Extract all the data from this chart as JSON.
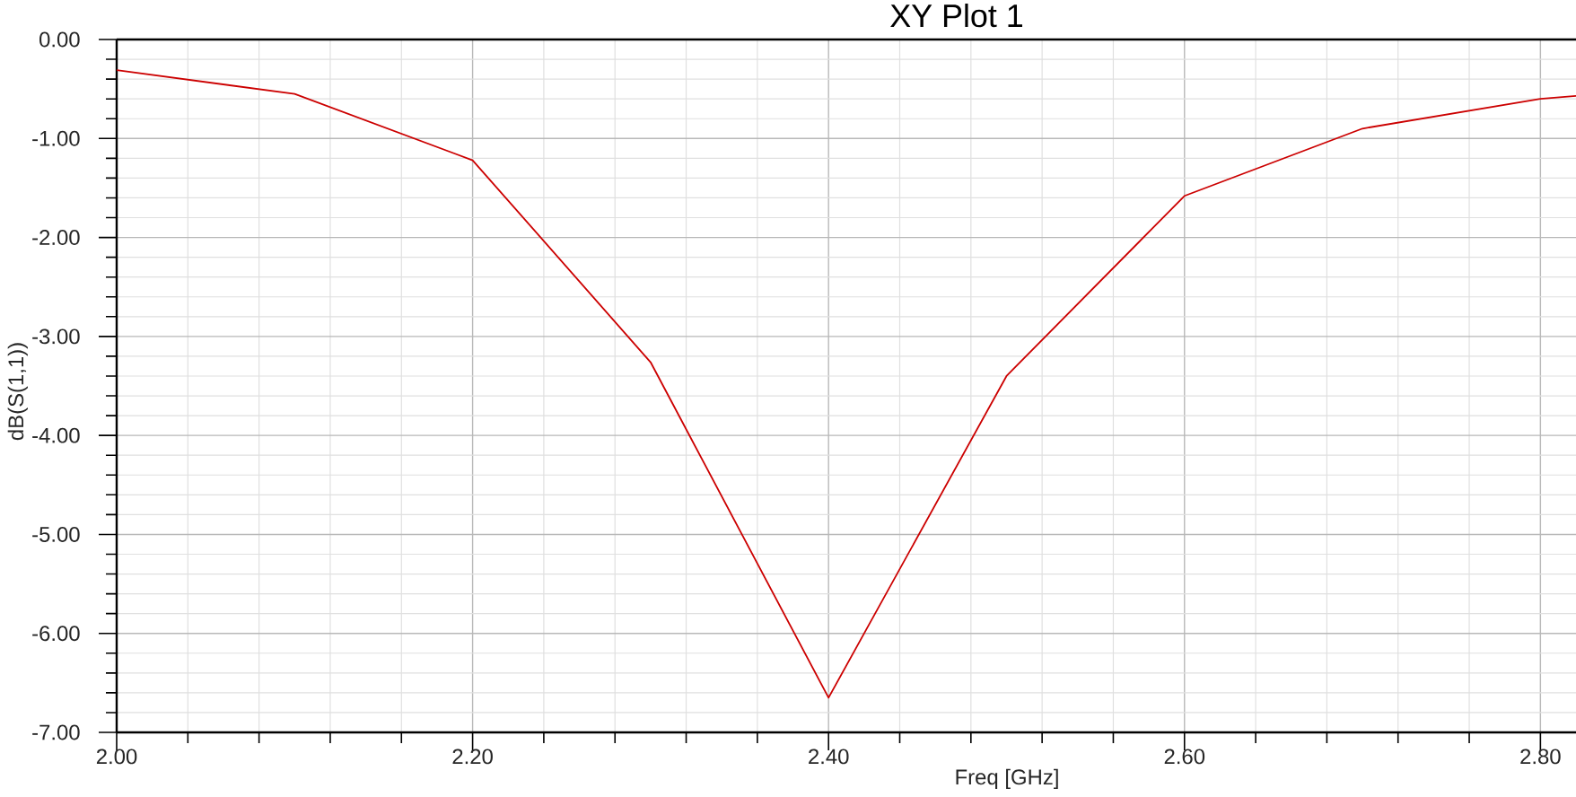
{
  "chart_data": {
    "type": "line",
    "title": "XY Plot 1",
    "xlabel": "Freq [GHz]",
    "ylabel": "dB(S(1,1))",
    "x": [
      2.0,
      2.1,
      2.2,
      2.3,
      2.4,
      2.5,
      2.6,
      2.7,
      2.8,
      2.82
    ],
    "series": [
      {
        "color": "#cc0000",
        "values": [
          -0.31,
          -0.55,
          -1.22,
          -3.26,
          -6.65,
          -3.4,
          -1.58,
          -0.9,
          -0.6,
          -0.57
        ]
      }
    ],
    "xlim": [
      2.0,
      2.82
    ],
    "ylim": [
      -7,
      0
    ],
    "xticks": [
      {
        "value": 2.0,
        "label": "2.00"
      },
      {
        "value": 2.04,
        "label": null
      },
      {
        "value": 2.08,
        "label": null
      },
      {
        "value": 2.12,
        "label": null
      },
      {
        "value": 2.16,
        "label": null
      },
      {
        "value": 2.2,
        "label": "2.20"
      },
      {
        "value": 2.24,
        "label": null
      },
      {
        "value": 2.28,
        "label": null
      },
      {
        "value": 2.32,
        "label": null
      },
      {
        "value": 2.36,
        "label": null
      },
      {
        "value": 2.4,
        "label": "2.40"
      },
      {
        "value": 2.44,
        "label": null
      },
      {
        "value": 2.48,
        "label": null
      },
      {
        "value": 2.52,
        "label": null
      },
      {
        "value": 2.56,
        "label": null
      },
      {
        "value": 2.6,
        "label": "2.60"
      },
      {
        "value": 2.64,
        "label": null
      },
      {
        "value": 2.68,
        "label": null
      },
      {
        "value": 2.72,
        "label": null
      },
      {
        "value": 2.76,
        "label": null
      },
      {
        "value": 2.8,
        "label": "2.80"
      }
    ],
    "yticks": [
      {
        "value": 0,
        "label": "0.00"
      },
      {
        "value": -0.2,
        "label": null
      },
      {
        "value": -0.4,
        "label": null
      },
      {
        "value": -0.6,
        "label": null
      },
      {
        "value": -0.8,
        "label": null
      },
      {
        "value": -1,
        "label": "-1.00"
      },
      {
        "value": -1.2,
        "label": null
      },
      {
        "value": -1.4,
        "label": null
      },
      {
        "value": -1.6,
        "label": null
      },
      {
        "value": -1.8,
        "label": null
      },
      {
        "value": -2,
        "label": "-2.00"
      },
      {
        "value": -2.2,
        "label": null
      },
      {
        "value": -2.4,
        "label": null
      },
      {
        "value": -2.6,
        "label": null
      },
      {
        "value": -2.8,
        "label": null
      },
      {
        "value": -3,
        "label": "-3.00"
      },
      {
        "value": -3.2,
        "label": null
      },
      {
        "value": -3.4,
        "label": null
      },
      {
        "value": -3.6,
        "label": null
      },
      {
        "value": -3.8,
        "label": null
      },
      {
        "value": -4,
        "label": "-4.00"
      },
      {
        "value": -4.2,
        "label": null
      },
      {
        "value": -4.4,
        "label": null
      },
      {
        "value": -4.6,
        "label": null
      },
      {
        "value": -4.8,
        "label": null
      },
      {
        "value": -5,
        "label": "-5.00"
      },
      {
        "value": -5.2,
        "label": null
      },
      {
        "value": -5.4,
        "label": null
      },
      {
        "value": -5.6,
        "label": null
      },
      {
        "value": -5.8,
        "label": null
      },
      {
        "value": -6,
        "label": "-6.00"
      },
      {
        "value": -6.2,
        "label": null
      },
      {
        "value": -6.4,
        "label": null
      },
      {
        "value": -6.6,
        "label": null
      },
      {
        "value": -6.8,
        "label": null
      },
      {
        "value": -7,
        "label": "-7.00"
      }
    ],
    "grid": true,
    "line_style": "solid"
  }
}
